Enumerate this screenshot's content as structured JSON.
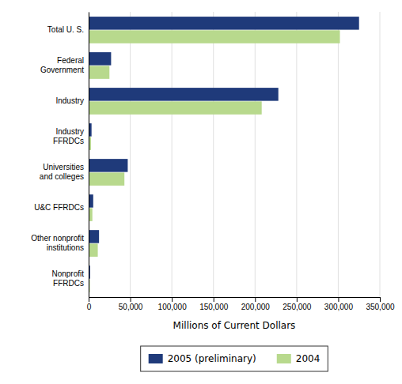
{
  "chart_data": {
    "type": "bar",
    "orientation": "horizontal",
    "categories": [
      "Total U. S.",
      "Federal\nGovernment",
      "Industry",
      "Industry\nFFRDCs",
      "Universities\nand colleges",
      "U&C FFRDCs",
      "Other nonprofit\ninstitutions",
      "Nonprofit\nFFRDCs"
    ],
    "series": [
      {
        "name": "2005 (preliminary)",
        "color": "#1f3a7a",
        "values": [
          325000,
          27000,
          228000,
          3500,
          47000,
          5500,
          12500,
          1800
        ]
      },
      {
        "name": "2004",
        "color": "#b8d98d",
        "values": [
          302000,
          25000,
          208000,
          2800,
          43000,
          4500,
          11000,
          1500
        ]
      }
    ],
    "xlabel": "Millions of Current Dollars",
    "xlim": [
      0,
      350000
    ],
    "xticks": [
      0,
      {
        "value": 50000,
        "label": "50,000"
      },
      {
        "value": 100000,
        "label": "100,000"
      },
      {
        "value": 150000,
        "label": "150,000"
      },
      {
        "value": 200000,
        "label": "200,000"
      },
      {
        "value": 250000,
        "label": "250,000"
      },
      {
        "value": 300000,
        "label": "300,000"
      },
      {
        "value": 350000,
        "label": "350,000"
      }
    ],
    "grid": true,
    "legend": "bottom"
  }
}
